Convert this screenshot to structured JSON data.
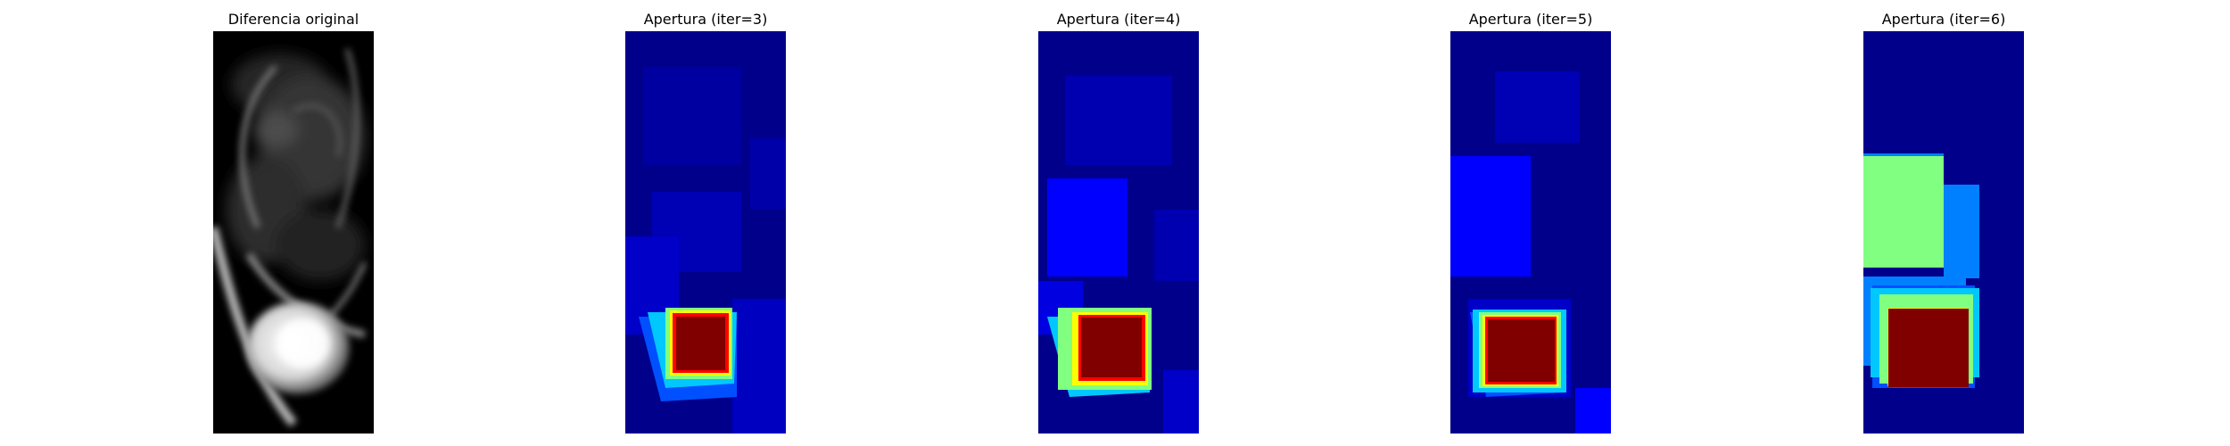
{
  "panels": [
    {
      "title": "Diferencia original",
      "kind": "grayscale"
    },
    {
      "title": "Apertura (iter=3)",
      "kind": "jet"
    },
    {
      "title": "Apertura (iter=4)",
      "kind": "jet"
    },
    {
      "title": "Apertura (iter=5)",
      "kind": "jet"
    },
    {
      "title": "Apertura (iter=6)",
      "kind": "jet"
    }
  ],
  "colors": {
    "jet_dark_blue": "#00008b",
    "jet_blue": "#0000ff",
    "jet_cyan": "#00c8ff",
    "jet_green": "#80ff80",
    "jet_yellow": "#ffff00",
    "jet_red": "#ff0000",
    "jet_dark_red": "#800000"
  }
}
